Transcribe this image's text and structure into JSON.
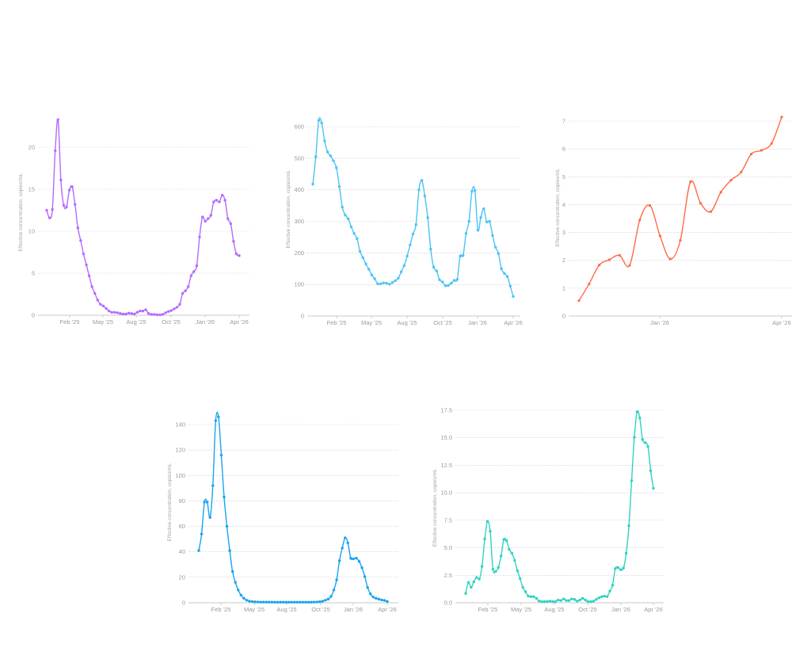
{
  "chart_data": [
    {
      "type": "line",
      "title": "",
      "ylabel": "Effective concentration, copies/mL",
      "xlabel": "",
      "color": "#b36bff",
      "ylim": [
        0,
        23.5
      ],
      "yticks": [
        0,
        5,
        10,
        15,
        20
      ],
      "ytick_labels": [
        "0",
        "5",
        "10",
        "15",
        "20"
      ],
      "xlim_weeks": [
        0,
        64
      ],
      "xticks_weeks": [
        5.5,
        18.5,
        31.5,
        42.5,
        55.5,
        63
      ],
      "xtick_labels": [
        "Feb '25",
        "May '25",
        "Aug '25",
        "Oct '25",
        "Jan '26",
        "Apr '26"
      ],
      "grid": true,
      "values": [
        12.5,
        11.6,
        12.6,
        19.6,
        23.3,
        16.1,
        13.1,
        12.9,
        14.9,
        15.3,
        13.2,
        10.4,
        8.9,
        7.3,
        6.0,
        4.7,
        3.4,
        2.6,
        1.8,
        1.3,
        1.1,
        0.8,
        0.5,
        0.35,
        0.35,
        0.3,
        0.2,
        0.15,
        0.15,
        0.25,
        0.2,
        0.15,
        0.35,
        0.5,
        0.5,
        0.65,
        0.2,
        0.1,
        0.1,
        0.05,
        0.05,
        0.1,
        0.3,
        0.45,
        0.55,
        0.75,
        0.95,
        1.3,
        2.6,
        2.9,
        3.4,
        4.7,
        5.2,
        5.9,
        9.3,
        11.7,
        11.2,
        11.5,
        11.9,
        13.5,
        13.7,
        13.5,
        14.3,
        13.7,
        11.5,
        10.9,
        8.8,
        7.3,
        7.1
      ]
    },
    {
      "type": "line",
      "title": "",
      "ylabel": "Effective concentration, copies/mL",
      "xlabel": "",
      "color": "#4cc3f5",
      "ylim": [
        0,
        630
      ],
      "yticks": [
        0,
        100,
        200,
        300,
        400,
        500,
        600
      ],
      "ytick_labels": [
        "0",
        "100",
        "200",
        "300",
        "400",
        "500",
        "600"
      ],
      "xtick_labels": [
        "Feb '25",
        "May '25",
        "Aug '25",
        "Oct '25",
        "Jan '26",
        "Apr '26"
      ],
      "grid": true,
      "values": [
        418,
        505,
        620,
        612,
        555,
        520,
        508,
        492,
        470,
        410,
        345,
        320,
        308,
        283,
        262,
        245,
        205,
        185,
        165,
        148,
        130,
        118,
        102,
        102,
        105,
        104,
        101,
        106,
        112,
        120,
        140,
        160,
        190,
        225,
        260,
        290,
        400,
        430,
        380,
        312,
        212,
        155,
        143,
        115,
        108,
        96,
        97,
        104,
        113,
        116,
        190,
        192,
        262,
        300,
        395,
        398,
        272,
        312,
        340,
        298,
        300,
        255,
        218,
        198,
        150,
        135,
        125,
        95,
        62
      ]
    },
    {
      "type": "line",
      "title": "",
      "ylabel": "Effective concentration, copies/mL",
      "xlabel": "",
      "color": "#ff6a4a",
      "ylim": [
        0,
        7.2
      ],
      "yticks": [
        0,
        1,
        2,
        3,
        4,
        5,
        6,
        7
      ],
      "ytick_labels": [
        "0",
        "1",
        "2",
        "3",
        "4",
        "5",
        "6",
        "7"
      ],
      "xtick_labels": [
        "Jan '26",
        "Apr '26"
      ],
      "grid": true,
      "values": [
        0.55,
        1.15,
        1.83,
        2.02,
        2.18,
        1.82,
        3.45,
        3.97,
        2.88,
        2.05,
        2.72,
        4.82,
        4.05,
        3.75,
        4.45,
        4.88,
        5.17,
        5.82,
        5.95,
        6.2,
        7.15
      ]
    },
    {
      "type": "line",
      "title": "",
      "ylabel": "Effective concentration, copies/mL",
      "xlabel": "",
      "color": "#1aa3f0",
      "ylim": [
        0,
        150
      ],
      "yticks": [
        0,
        20,
        40,
        60,
        80,
        100,
        120,
        140
      ],
      "ytick_labels": [
        "0",
        "20",
        "40",
        "60",
        "80",
        "100",
        "120",
        "140"
      ],
      "xtick_labels": [
        "Feb '25",
        "May '25",
        "Aug '25",
        "Oct '25",
        "Jan '26",
        "Apr '26"
      ],
      "grid": true,
      "values": [
        41,
        54,
        79,
        79,
        67,
        92,
        143,
        146,
        116,
        83,
        60,
        41,
        24.5,
        16,
        10,
        6,
        3.5,
        2,
        1.2,
        0.9,
        0.7,
        0.6,
        0.5,
        0.5,
        0.5,
        0.5,
        0.4,
        0.4,
        0.4,
        0.4,
        0.4,
        0.4,
        0.4,
        0.4,
        0.4,
        0.4,
        0.4,
        0.4,
        0.4,
        0.4,
        0.4,
        0.5,
        0.6,
        0.8,
        1.2,
        2,
        2.8,
        5,
        10,
        18,
        33,
        43,
        51,
        47,
        35,
        34.5,
        35,
        32.5,
        27.5,
        20.5,
        12,
        7,
        4.5,
        3.5,
        2.8,
        2.2,
        1.8,
        1.0
      ]
    },
    {
      "type": "line",
      "title": "",
      "ylabel": "Effective concentration, copies/mL",
      "xlabel": "",
      "color": "#2ed3c0",
      "ylim": [
        0,
        17.5
      ],
      "yticks": [
        0,
        2.5,
        5,
        7.5,
        10,
        12.5,
        15,
        17.5
      ],
      "ytick_labels": [
        "0.0",
        "2.5",
        "5.0",
        "7.5",
        "10.0",
        "12.5",
        "15.0",
        "17.5"
      ],
      "xtick_labels": [
        "Feb '25",
        "May '25",
        "Aug '25",
        "Oct '25",
        "Jan '26",
        "Apr '26"
      ],
      "grid": true,
      "values": [
        0.85,
        1.85,
        1.4,
        1.9,
        2.3,
        2.15,
        3.3,
        5.8,
        7.4,
        6.5,
        3.05,
        2.85,
        3.2,
        4.25,
        5.75,
        5.65,
        4.85,
        4.5,
        3.85,
        2.9,
        2.2,
        1.4,
        1.0,
        0.6,
        0.55,
        0.55,
        0.4,
        0.15,
        0.1,
        0.1,
        0.12,
        0.15,
        0.1,
        0.1,
        0.25,
        0.2,
        0.35,
        0.2,
        0.2,
        0.35,
        0.3,
        0.15,
        0.25,
        0.4,
        0.25,
        0.1,
        0.1,
        0.15,
        0.3,
        0.45,
        0.55,
        0.6,
        0.55,
        1.05,
        1.6,
        3.1,
        3.2,
        3.0,
        3.15,
        4.5,
        7.0,
        11.1,
        15.05,
        17.35,
        16.8,
        14.85,
        14.55,
        14.2,
        12.0,
        10.4
      ]
    }
  ]
}
